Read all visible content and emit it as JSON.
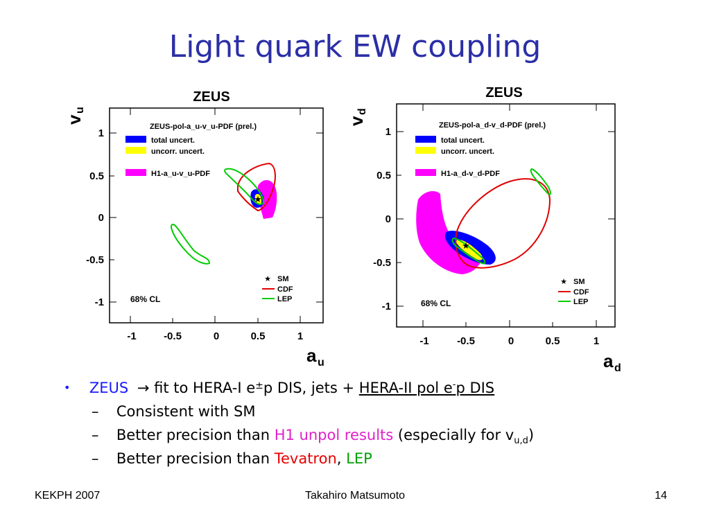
{
  "slide": {
    "title": "Light quark EW coupling"
  },
  "plots": [
    {
      "header": "ZEUS",
      "ylabel": "v",
      "ylabel_sub": "u",
      "xlabel": "a",
      "xlabel_sub": "u",
      "xticks": [
        "-1",
        "-0.5",
        "0",
        "0.5",
        "1"
      ],
      "yticks": [
        "1",
        "0.5",
        "0",
        "-0.5",
        "-1"
      ],
      "legend_top": [
        "ZEUS-pol-a_u-v_u-PDF (prel.)",
        "total uncert.",
        "uncorr. uncert.",
        "H1-a_u-v_u-PDF"
      ],
      "legend_bottom": [
        "SM",
        "CDF",
        "LEP"
      ],
      "cl_label": "68% CL"
    },
    {
      "header": "ZEUS",
      "ylabel": "v",
      "ylabel_sub": "d",
      "xlabel": "a",
      "xlabel_sub": "d",
      "xticks": [
        "-1",
        "-0.5",
        "0",
        "0.5",
        "1"
      ],
      "yticks": [
        "1",
        "0.5",
        "0",
        "-0.5",
        "-1"
      ],
      "legend_top": [
        "ZEUS-pol-a_d-v_d-PDF (prel.)",
        "total uncert.",
        "uncorr. uncert.",
        "H1-a_d-v_d-PDF"
      ],
      "legend_bottom": [
        "SM",
        "CDF",
        "LEP"
      ],
      "cl_label": "68% CL"
    }
  ],
  "bullets": {
    "main": {
      "zeus": "ZEUS",
      "arrow": "→",
      "text1": " fit to HERA-I e",
      "pm": "±",
      "text2": "p DIS,  jets + ",
      "hera2_a": "HERA-II pol e",
      "hera2_sup": "-",
      "hera2_b": "p DIS"
    },
    "sub1": "Consistent with SM",
    "sub2": {
      "prefix": "Better precision than ",
      "h1": "H1 unpol results",
      "suffix": " (especially for v",
      "sub": "u,d",
      "close": ")"
    },
    "sub3": {
      "prefix": "Better precision than ",
      "tevatron": "Tevatron",
      "comma": ", ",
      "lep": "LEP"
    },
    "dash": "–",
    "dot": "•"
  },
  "footer": {
    "left": "KEKPH 2007",
    "center": "Takahiro Matsumoto",
    "right": "14"
  },
  "colors": {
    "title": "#2b2fa6",
    "total_uncert": "#0000ff",
    "uncorr_uncert": "#ffff00",
    "h1": "#ff00ff",
    "cdf": "#ff0000",
    "lep": "#00cc00"
  }
}
